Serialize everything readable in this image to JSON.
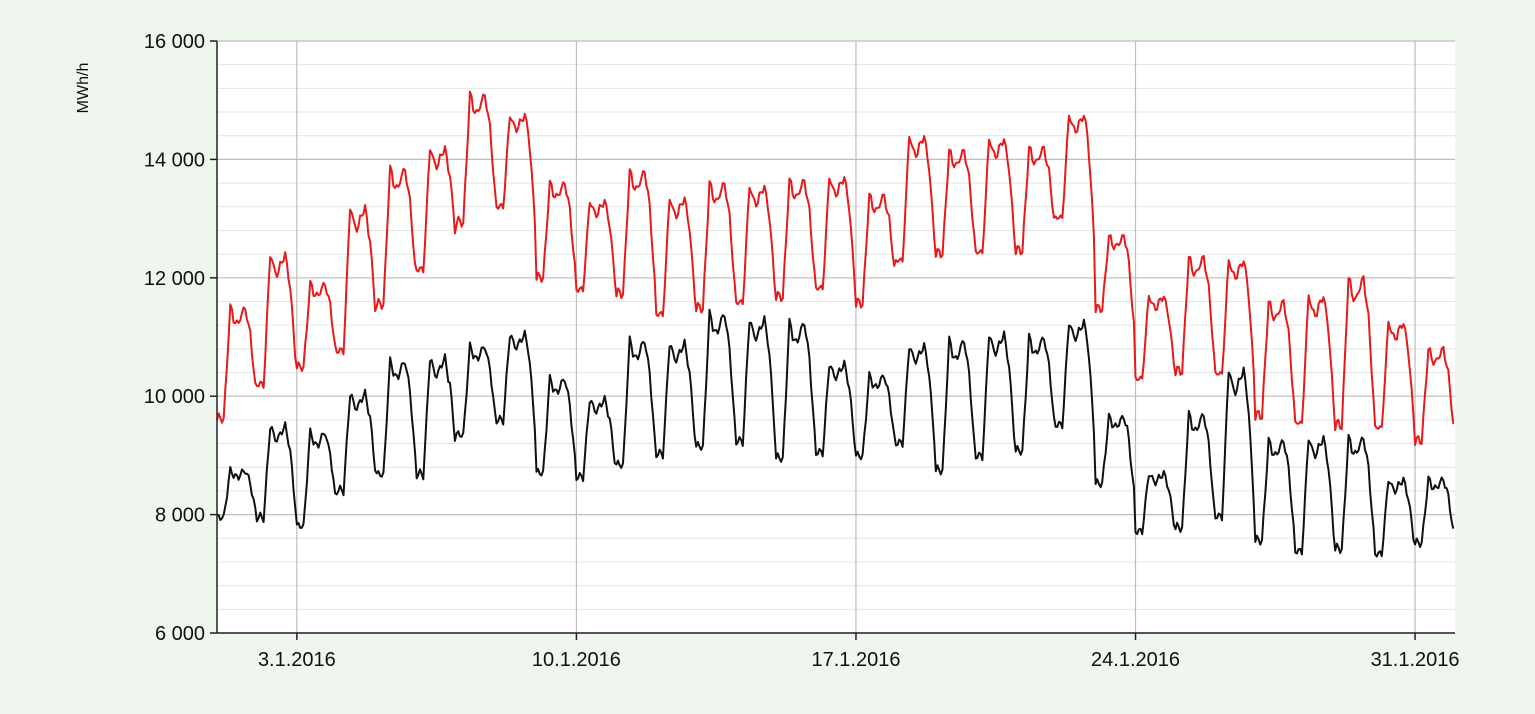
{
  "chart_data": {
    "type": "line",
    "title": "",
    "xlabel": "",
    "ylabel": "MWh/h",
    "ylim": [
      6000,
      16000
    ],
    "yticks": [
      {
        "value": 6000,
        "label": "6 000"
      },
      {
        "value": 8000,
        "label": "8 000"
      },
      {
        "value": 10000,
        "label": "10 000"
      },
      {
        "value": 12000,
        "label": "12 000"
      },
      {
        "value": 14000,
        "label": "14 000"
      },
      {
        "value": 16000,
        "label": "16 000"
      }
    ],
    "xlim": [
      "2016-01-01",
      "2016-02-01"
    ],
    "xticks": [
      {
        "value": "2016-01-03",
        "label": "3.1.2016"
      },
      {
        "value": "2016-01-10",
        "label": "10.1.2016"
      },
      {
        "value": "2016-01-17",
        "label": "17.1.2016"
      },
      {
        "value": "2016-01-24",
        "label": "24.1.2016"
      },
      {
        "value": "2016-01-31",
        "label": "31.1.2016"
      }
    ],
    "grid": true,
    "legend": "none",
    "series": [
      {
        "color": "#e8191b",
        "x": [
          "2016-01-01",
          "2016-01-02",
          "2016-01-03",
          "2016-01-04",
          "2016-01-05",
          "2016-01-06",
          "2016-01-07",
          "2016-01-08",
          "2016-01-09",
          "2016-01-10",
          "2016-01-11",
          "2016-01-12",
          "2016-01-13",
          "2016-01-14",
          "2016-01-15",
          "2016-01-16",
          "2016-01-17",
          "2016-01-18",
          "2016-01-19",
          "2016-01-20",
          "2016-01-21",
          "2016-01-22",
          "2016-01-23",
          "2016-01-24",
          "2016-01-25",
          "2016-01-26",
          "2016-01-27",
          "2016-01-28",
          "2016-01-29",
          "2016-01-30",
          "2016-01-31"
        ],
        "daily_max": [
          11500,
          12400,
          11900,
          13200,
          13850,
          14200,
          15100,
          14750,
          13600,
          13300,
          13800,
          13350,
          13600,
          13550,
          13650,
          13700,
          13400,
          14400,
          14150,
          14350,
          14200,
          14750,
          12700,
          11700,
          12350,
          12300,
          11600,
          11700,
          12000,
          11250,
          10800
        ],
        "daily_min": [
          9500,
          10050,
          10400,
          10600,
          11400,
          12000,
          12800,
          13100,
          11900,
          11700,
          11600,
          11250,
          11350,
          11450,
          11550,
          11700,
          11450,
          12150,
          12300,
          12300,
          12350,
          12900,
          11400,
          10200,
          10300,
          10250,
          9550,
          9400,
          9350,
          9350,
          9150
        ]
      },
      {
        "color": "#111111",
        "x": [
          "2016-01-01",
          "2016-01-02",
          "2016-01-03",
          "2016-01-04",
          "2016-01-05",
          "2016-01-06",
          "2016-01-07",
          "2016-01-08",
          "2016-01-09",
          "2016-01-10",
          "2016-01-11",
          "2016-01-12",
          "2016-01-13",
          "2016-01-14",
          "2016-01-15",
          "2016-01-16",
          "2016-01-17",
          "2016-01-18",
          "2016-01-19",
          "2016-01-20",
          "2016-01-21",
          "2016-01-22",
          "2016-01-23",
          "2016-01-24",
          "2016-01-25",
          "2016-01-26",
          "2016-01-27",
          "2016-01-28",
          "2016-01-29",
          "2016-01-30",
          "2016-01-31"
        ],
        "daily_max": [
          8750,
          9500,
          9400,
          10050,
          10600,
          10650,
          10850,
          11050,
          10300,
          9950,
          10950,
          10900,
          11400,
          11300,
          11250,
          10550,
          10350,
          10850,
          10950,
          11050,
          11000,
          11250,
          9650,
          8700,
          9700,
          10450,
          9250,
          9300,
          9300,
          8600,
          8600
        ],
        "daily_min": [
          7900,
          7850,
          7700,
          8300,
          8550,
          8550,
          9250,
          9500,
          8600,
          8550,
          8700,
          8900,
          9000,
          9100,
          8800,
          8950,
          8900,
          9100,
          8600,
          8850,
          8950,
          9400,
          8450,
          7650,
          7650,
          7800,
          7450,
          7250,
          7300,
          7250,
          7450
        ]
      }
    ]
  }
}
